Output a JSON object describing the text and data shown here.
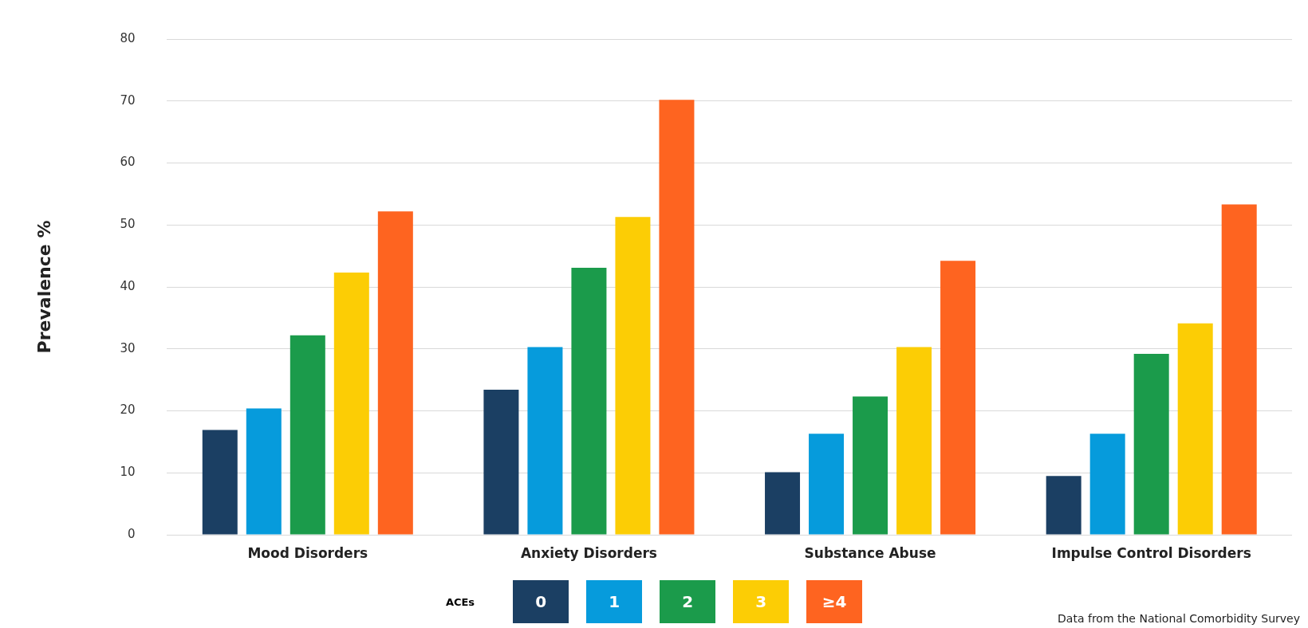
{
  "chart_data": {
    "type": "bar",
    "ylabel": "Prevalence %",
    "legend_title": "ACEs",
    "categories": [
      "Mood Disorders",
      "Anxiety Disorders",
      "Substance Abuse",
      "Impulse Control Disorders"
    ],
    "series": [
      {
        "name": "0",
        "color": "#1b3f63",
        "values": [
          16.9,
          23.4,
          10.1,
          9.5
        ]
      },
      {
        "name": "1",
        "color": "#069bdc",
        "values": [
          20.4,
          30.3,
          16.3,
          16.3
        ]
      },
      {
        "name": "2",
        "color": "#1b9b4b",
        "values": [
          32.2,
          43.1,
          22.3,
          29.2
        ]
      },
      {
        "name": "3",
        "color": "#fccd05",
        "values": [
          42.3,
          51.3,
          30.3,
          34.1
        ]
      },
      {
        "name": "≥4",
        "color": "#fe6420",
        "values": [
          52.2,
          70.2,
          44.2,
          53.3
        ]
      }
    ],
    "ylim": [
      0,
      80
    ],
    "yticks": [
      0,
      10,
      20,
      30,
      40,
      50,
      60,
      70,
      80
    ],
    "grid": "y",
    "legend": "bottom",
    "annotations": [
      "Data from the National Comorbidity Survey"
    ]
  }
}
